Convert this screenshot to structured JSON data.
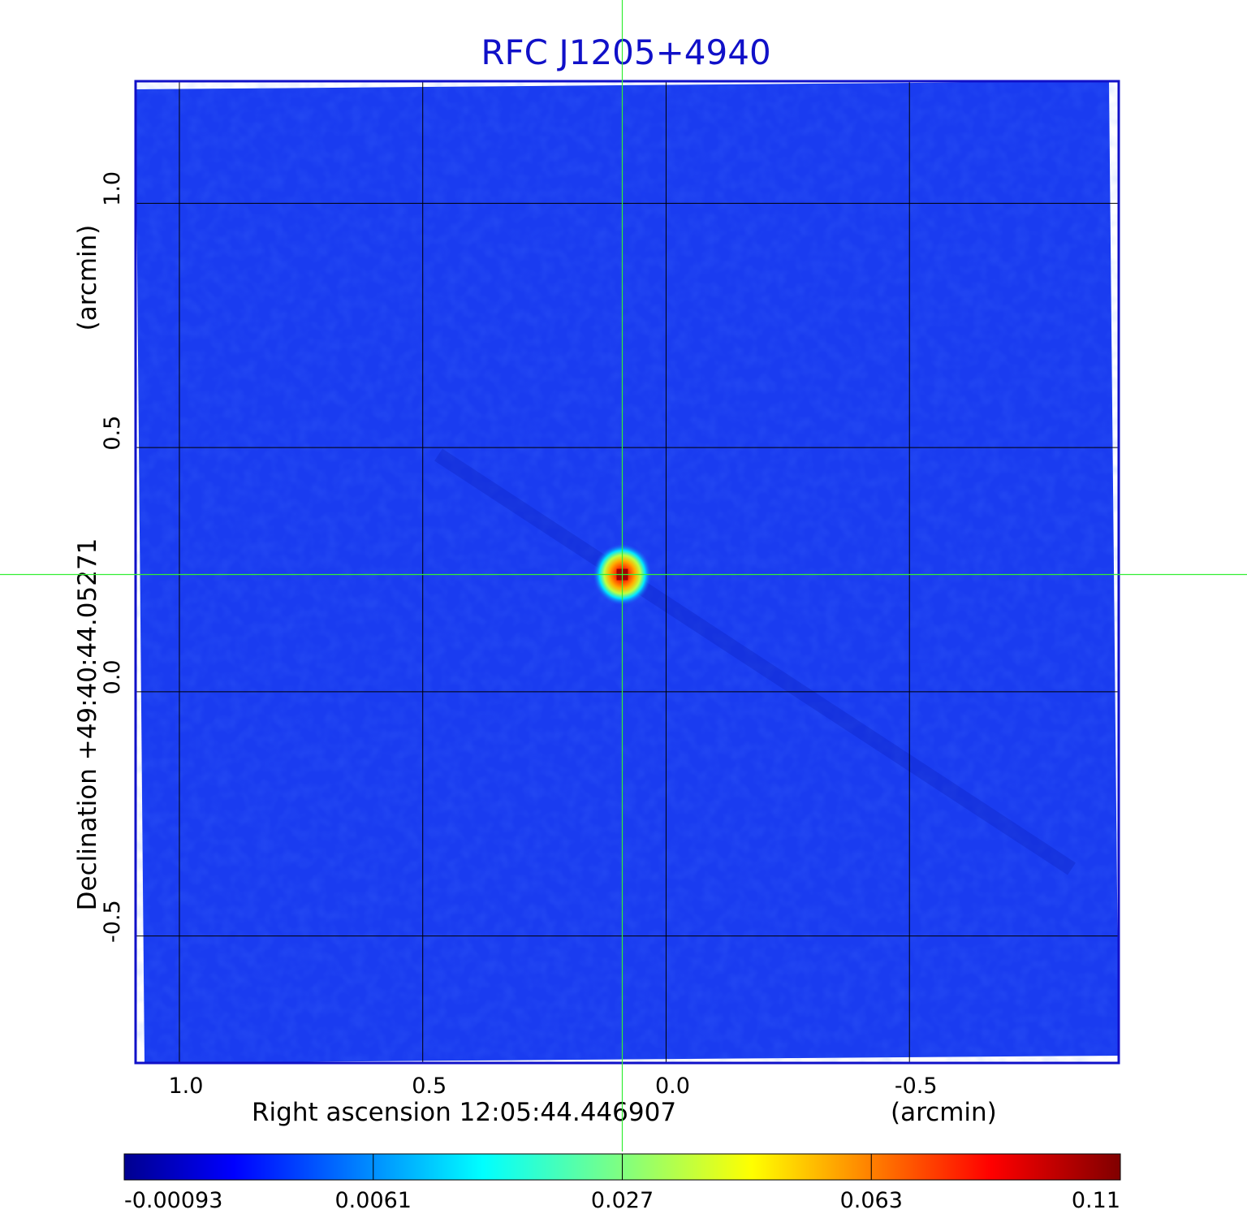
{
  "chart_data": {
    "type": "heatmap",
    "title": "RFC J1205+4940",
    "xlabel": "Right ascension  12:05:44.446907",
    "xunit": "(arcmin)",
    "ylabel": "Declination  +49:40:44.05271",
    "yunit": "(arcmin)",
    "xlim": [
      1.09,
      -0.93
    ],
    "ylim": [
      -0.76,
      1.25
    ],
    "xticks": [
      1.0,
      0.5,
      0.0,
      -0.5
    ],
    "xtick_labels": [
      "1.0",
      "0.5",
      "0.0",
      "-0.5"
    ],
    "yticks": [
      -0.5,
      0.0,
      0.5,
      1.0
    ],
    "ytick_labels": [
      "-0.5",
      "0.0",
      "0.5",
      "1.0"
    ],
    "grid": true,
    "source_peak": {
      "x": 0.09,
      "y": 0.24,
      "value": 0.11
    },
    "crosshair": {
      "x": 0.09,
      "y": 0.24
    },
    "colorbar": {
      "colormap": "jet",
      "tick_labels": [
        "-0.00093",
        "0.0061",
        "0.027",
        "0.063",
        "0.11"
      ]
    },
    "colors": {
      "background_field": "#1a3cf0",
      "frame": "#1010c8",
      "crosshair": "#33ee33",
      "grid": "#000000"
    }
  }
}
